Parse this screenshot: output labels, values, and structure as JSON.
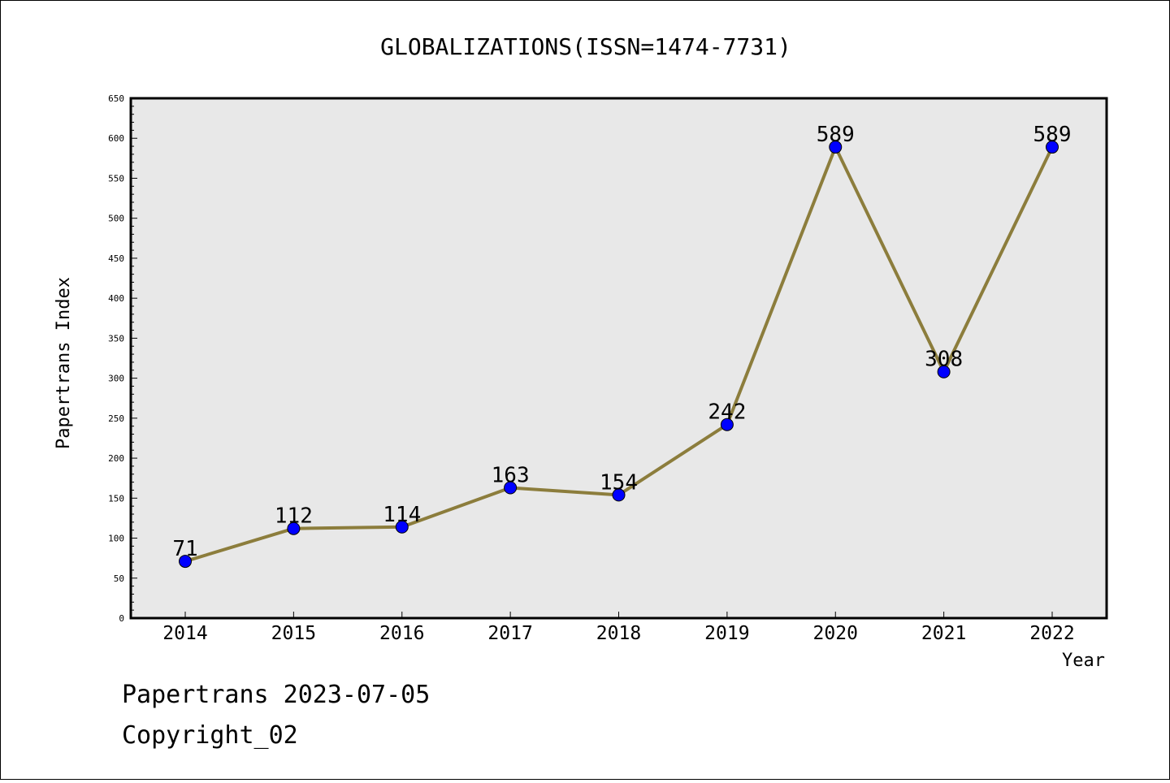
{
  "chart_data": {
    "type": "line",
    "title": "GLOBALIZATIONS(ISSN=1474-7731)",
    "xlabel": "Year",
    "ylabel": "Papertrans Index",
    "categories": [
      "2014",
      "2015",
      "2016",
      "2017",
      "2018",
      "2019",
      "2020",
      "2021",
      "2022"
    ],
    "values": [
      71,
      112,
      114,
      163,
      154,
      242,
      589,
      308,
      589
    ],
    "data_labels": [
      "71",
      "112",
      "114",
      "163",
      "154",
      "242",
      "589",
      "308",
      "589"
    ],
    "ylim": [
      0,
      650
    ],
    "yticks": [
      "0",
      "50",
      "100",
      "150",
      "200",
      "250",
      "300",
      "350",
      "400",
      "450",
      "500",
      "550",
      "600",
      "650"
    ],
    "grid": false,
    "line_color": "#8c7d3c",
    "marker_color": "#0000ff",
    "plot_background": "#e8e8e8"
  },
  "footer": {
    "line1": "Papertrans 2023-07-05",
    "line2": "Copyright_02"
  }
}
